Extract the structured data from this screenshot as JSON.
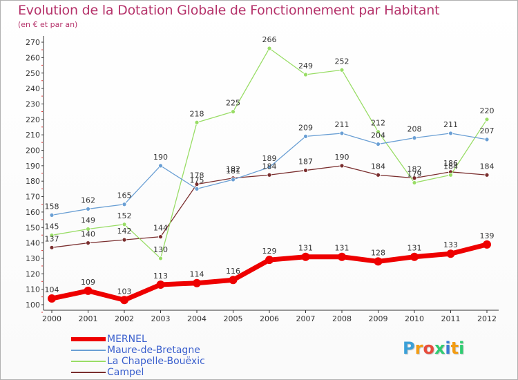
{
  "title": "Evolution de la Dotation Globale de Fonctionnement par Habitant",
  "subtitle": "(en € et par an)",
  "logo": {
    "letters": [
      {
        "ch": "P",
        "color": "#3aa0d8"
      },
      {
        "ch": "r",
        "color": "#f39c12"
      },
      {
        "ch": "o",
        "color": "#e74c3c"
      },
      {
        "ch": "x",
        "color": "#2ecc71"
      },
      {
        "ch": "i",
        "color": "#3a7bd5"
      },
      {
        "ch": "t",
        "color": "#f39c12"
      },
      {
        "ch": "i",
        "color": "#2ecc71"
      }
    ]
  },
  "chart_data": {
    "type": "line",
    "categories": [
      "2000",
      "2001",
      "2002",
      "2003",
      "2004",
      "2005",
      "2006",
      "2007",
      "2008",
      "2009",
      "2010",
      "2011",
      "2012"
    ],
    "ylim": [
      100,
      270
    ],
    "yticks": [
      100,
      110,
      120,
      130,
      140,
      150,
      160,
      170,
      180,
      190,
      200,
      210,
      220,
      230,
      240,
      250,
      260,
      270
    ],
    "grid": false,
    "legend_position": "bottom-left",
    "series": [
      {
        "name": "MERNEL",
        "color": "#ee0000",
        "values": [
          104,
          109,
          103,
          113,
          114,
          116,
          129,
          131,
          131,
          128,
          131,
          133,
          139
        ],
        "labels": [
          "104",
          "109",
          "103",
          "113",
          "114",
          "116",
          "129",
          "131",
          "131",
          "128",
          "131",
          "133",
          "139"
        ]
      },
      {
        "name": "Maure-de-Bretagne",
        "color": "#6a9fd4",
        "values": [
          158,
          162,
          165,
          190,
          175,
          181,
          189,
          209,
          211,
          204,
          208,
          211,
          207
        ],
        "labels": [
          "158",
          "162",
          "165",
          "190",
          "175",
          "181",
          "189",
          "209",
          "211",
          "204",
          "208",
          "211",
          "207"
        ]
      },
      {
        "name": "La Chapelle-Bouëxic",
        "color": "#99dd66",
        "values": [
          145,
          149,
          152,
          130,
          218,
          225,
          266,
          249,
          252,
          212,
          179,
          184,
          220
        ],
        "labels": [
          "145",
          "149",
          "152",
          "130",
          "218",
          "225",
          "266",
          "249",
          "252",
          "212",
          "179",
          "184",
          "220"
        ]
      },
      {
        "name": "Campel",
        "color": "#7a2e2e",
        "values": [
          137,
          140,
          142,
          144,
          178,
          182,
          184,
          187,
          190,
          184,
          182,
          186,
          184
        ],
        "labels": [
          "137",
          "140",
          "142",
          "144",
          "178",
          "182",
          "184",
          "187",
          "190",
          "184",
          "182",
          "186",
          "184"
        ]
      }
    ]
  }
}
